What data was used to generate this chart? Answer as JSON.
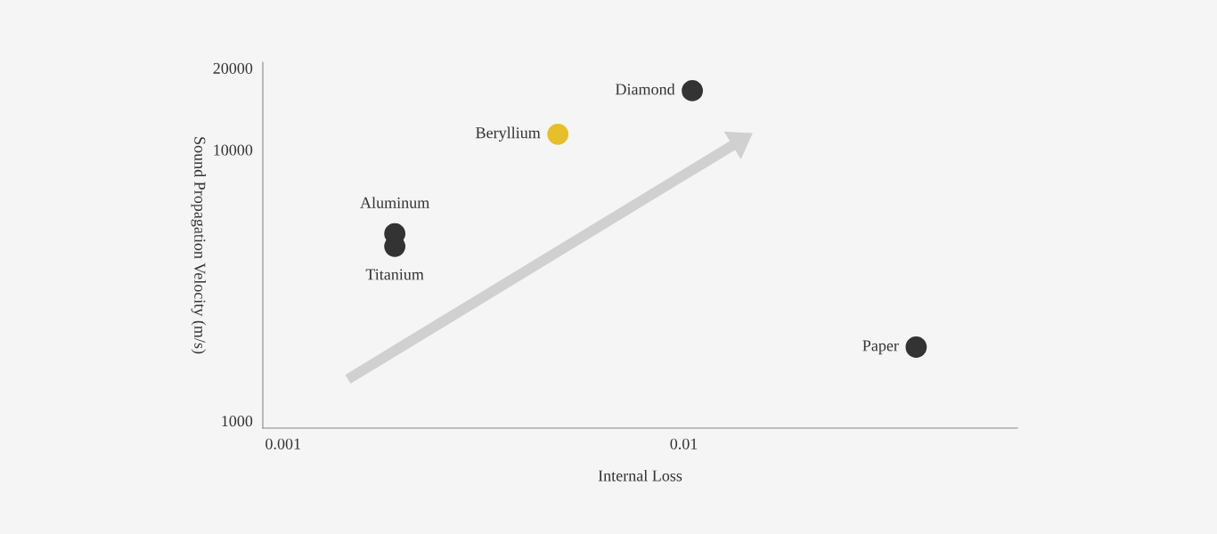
{
  "chart_data": {
    "type": "scatter",
    "xlabel": "Internal Loss",
    "ylabel": "Sound Propagation Velocity (m/s)",
    "log": "xy",
    "grid": false,
    "legend": false,
    "marker": "circle",
    "xlim": [
      0.00089,
      0.068
    ],
    "ylim": [
      940,
      21000
    ],
    "xticks": [
      0.001,
      0.01
    ],
    "yticks": [
      1000,
      10000,
      20000
    ],
    "series": [
      {
        "name": "Diamond",
        "color": "#333333",
        "x": [
          0.0105
        ],
        "values": [
          16500
        ]
      },
      {
        "name": "Beryllium",
        "color": "#e6bf2a",
        "x": [
          0.00485
        ],
        "values": [
          11400
        ]
      },
      {
        "name": "Aluminum",
        "color": "#333333",
        "x": [
          0.0019
        ],
        "values": [
          4900
        ]
      },
      {
        "name": "Titanium",
        "color": "#333333",
        "x": [
          0.0019
        ],
        "values": [
          4400
        ]
      },
      {
        "name": "Paper",
        "color": "#333333",
        "x": [
          0.038
        ],
        "values": [
          1870
        ]
      }
    ]
  }
}
